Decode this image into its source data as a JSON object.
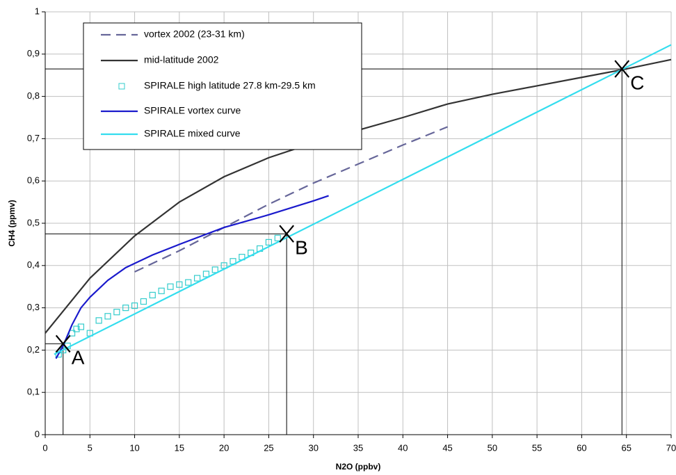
{
  "chart_data": {
    "type": "line",
    "x_label": "N2O (ppbv)",
    "y_label": "CH4 (ppmv)",
    "xlim": [
      0,
      70
    ],
    "xticks": [
      0,
      5,
      10,
      15,
      20,
      25,
      30,
      35,
      40,
      45,
      50,
      55,
      60,
      65,
      70
    ],
    "ylim": [
      0,
      1
    ],
    "yticks": [
      0,
      {
        "value": 0.1,
        "label": "0,1"
      },
      {
        "value": 0.2,
        "label": "0,2"
      },
      {
        "value": 0.3,
        "label": "0,3"
      },
      {
        "value": 0.4,
        "label": "0,4"
      },
      {
        "value": 0.5,
        "label": "0,5"
      },
      {
        "value": 0.6,
        "label": "0,6"
      },
      {
        "value": 0.7,
        "label": "0,7"
      },
      {
        "value": 0.8,
        "label": "0,8"
      },
      {
        "value": 0.9,
        "label": "0,9"
      },
      1
    ],
    "grid": true,
    "legend": "upper-left",
    "series": [
      {
        "name": "vortex 2002 (23-31 km)",
        "color": "#666699",
        "dash": true,
        "x": [
          10,
          15,
          20,
          25,
          30,
          35,
          40,
          45
        ],
        "values": [
          0.385,
          0.435,
          0.49,
          0.545,
          0.595,
          0.64,
          0.685,
          0.728
        ]
      },
      {
        "name": "mid-latitude 2002",
        "color": "#333333",
        "x": [
          0,
          5,
          10,
          15,
          20,
          25,
          30,
          35,
          40,
          45,
          50,
          55,
          60,
          65,
          70
        ],
        "values": [
          0.24,
          0.37,
          0.47,
          0.55,
          0.61,
          0.655,
          0.69,
          0.72,
          0.75,
          0.782,
          0.805,
          0.825,
          0.845,
          0.865,
          0.887
        ]
      },
      {
        "name": "SPIRALE high latitude 27.8 km-29.5 km",
        "color": "#33cccc",
        "marker": "square",
        "x": [
          1.5,
          2,
          2.5,
          3,
          3.5,
          4,
          5,
          6,
          7,
          8,
          9,
          10,
          11,
          12,
          13,
          14,
          15,
          16,
          17,
          18,
          19,
          20,
          21,
          22,
          23,
          24,
          25,
          26
        ],
        "values": [
          0.19,
          0.2,
          0.21,
          0.24,
          0.25,
          0.255,
          0.24,
          0.27,
          0.28,
          0.29,
          0.3,
          0.305,
          0.315,
          0.33,
          0.34,
          0.35,
          0.355,
          0.36,
          0.37,
          0.38,
          0.39,
          0.4,
          0.41,
          0.42,
          0.43,
          0.44,
          0.455,
          0.465
        ]
      },
      {
        "name": "SPIRALE vortex curve",
        "color": "#1a1acc",
        "x": [
          1.2,
          2,
          3,
          4,
          5,
          7,
          9,
          12,
          15,
          20,
          25,
          30,
          31.7
        ],
        "values": [
          0.18,
          0.21,
          0.26,
          0.3,
          0.325,
          0.365,
          0.395,
          0.425,
          0.45,
          0.49,
          0.52,
          0.553,
          0.565
        ]
      },
      {
        "name": "SPIRALE mixed curve",
        "color": "#33ddee",
        "x": [
          1,
          70
        ],
        "values": [
          0.19,
          0.922
        ]
      }
    ],
    "annotations": [
      {
        "label": "A",
        "x": 2,
        "y": 0.215
      },
      {
        "label": "B",
        "x": 27,
        "y": 0.475
      },
      {
        "label": "C",
        "x": 64.5,
        "y": 0.865
      }
    ]
  }
}
